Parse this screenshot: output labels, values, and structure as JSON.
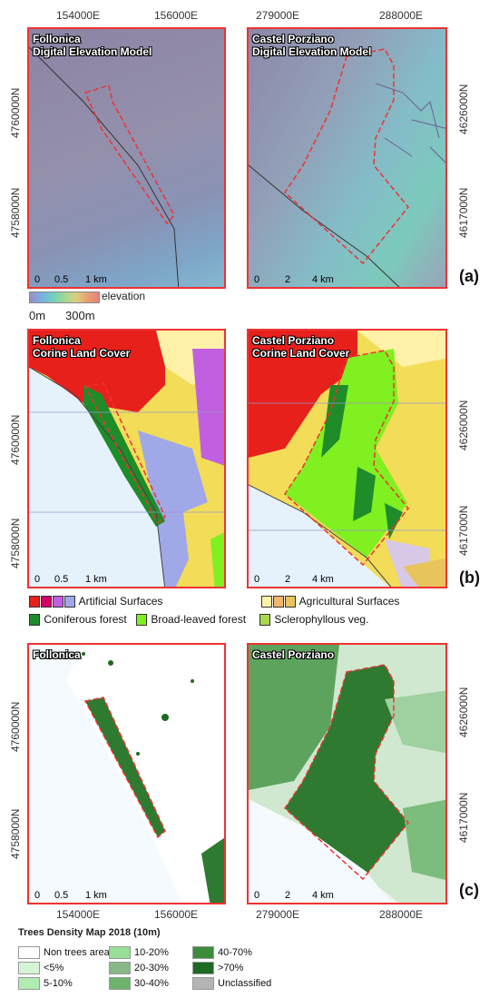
{
  "row_a": {
    "top_ticks": [
      "154000E",
      "156000E",
      "279000E",
      "288000E"
    ],
    "left_ticks": [
      "4760000N",
      "4758000N"
    ],
    "right_ticks": [
      "4626000N",
      "4617000N"
    ],
    "panel_left_title": [
      "Follonica",
      "Digital Elevation Model"
    ],
    "panel_right_title": [
      "Castel Porziano",
      "Digital Elevation Model"
    ],
    "scale_left": [
      "0",
      "0.5",
      "1 km"
    ],
    "scale_right": [
      "0",
      "2",
      "4 km"
    ],
    "letter": "(a)",
    "elevation_label": "elevation",
    "elevation_min": "0m",
    "elevation_max": "300m"
  },
  "row_b": {
    "left_ticks": [
      "4760000N",
      "4758000N"
    ],
    "right_ticks": [
      "4626000N",
      "4617000N"
    ],
    "panel_left_title": [
      "Follonica",
      "Corine Land Cover"
    ],
    "panel_right_title": [
      "Castel Porziano",
      "Corine Land Cover"
    ],
    "scale_left": [
      "0",
      "0.5",
      "1 km"
    ],
    "scale_right": [
      "0",
      "2",
      "4 km"
    ],
    "letter": "(b)",
    "legend": {
      "artificial": "Artificial Surfaces",
      "agricultural": "Agricultural Surfaces",
      "coniferous": "Coniferous forest",
      "broadleaved": "Broad-leaved forest",
      "sclerophyllous": "Sclerophyllous veg."
    },
    "colors": {
      "artificial": [
        "#e8201c",
        "#d4006a",
        "#c060e0",
        "#a0a8e8"
      ],
      "agricultural": [
        "#fff2a8",
        "#f2b66c",
        "#e8c45c"
      ],
      "coniferous": "#1e8c28",
      "broadleaved": "#80f020",
      "sclerophyllous": "#a8d84c"
    }
  },
  "row_c": {
    "left_ticks": [
      "4760000N",
      "4758000N"
    ],
    "right_ticks": [
      "4626000N",
      "4617000N"
    ],
    "bottom_ticks": [
      "154000E",
      "156000E",
      "279000E",
      "288000E"
    ],
    "panel_left_title": [
      "Follonica"
    ],
    "panel_right_title": [
      "Castel Porziano"
    ],
    "scale_left": [
      "0",
      "0.5",
      "1 km"
    ],
    "scale_right": [
      "0",
      "2",
      "4 km"
    ],
    "letter": "(c)",
    "density_title": "Trees Density Map 2018 (10m)",
    "density_classes": [
      {
        "label": "Non trees areas",
        "color": "#ffffff"
      },
      {
        "label": "<5%",
        "color": "#d4f5d4"
      },
      {
        "label": "5-10%",
        "color": "#b0ecb0"
      },
      {
        "label": "10-20%",
        "color": "#98e098"
      },
      {
        "label": "20-30%",
        "color": "#88b888"
      },
      {
        "label": "30-40%",
        "color": "#6cb46c"
      },
      {
        "label": "40-70%",
        "color": "#3c8c3c"
      },
      {
        "label": ">70%",
        "color": "#1e6a22"
      },
      {
        "label": "Unclassified",
        "color": "#b4b4b4"
      }
    ]
  }
}
